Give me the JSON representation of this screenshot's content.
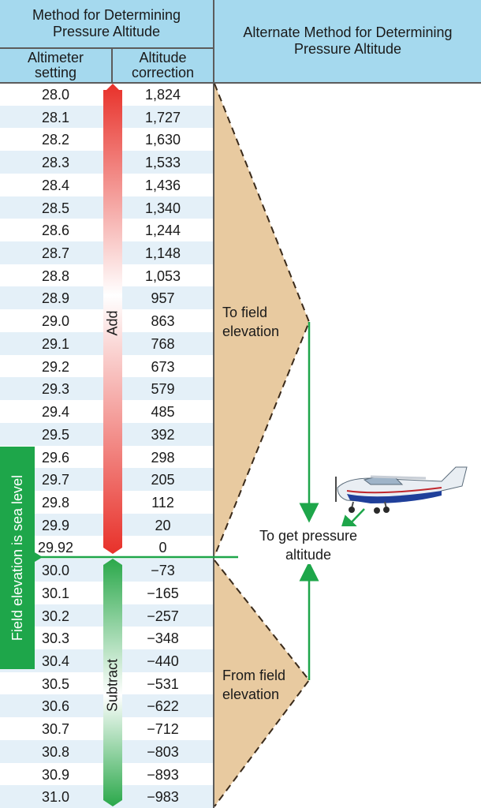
{
  "headers": {
    "left_title": "Method for Determining Pressure Altitude",
    "right_title": "Alternate Method for Determining Pressure Altitude",
    "col_altimeter": "Altimeter setting",
    "col_correction": "Altitude correction"
  },
  "rows": [
    {
      "setting": "28.0",
      "correction": "1,824"
    },
    {
      "setting": "28.1",
      "correction": "1,727"
    },
    {
      "setting": "28.2",
      "correction": "1,630"
    },
    {
      "setting": "28.3",
      "correction": "1,533"
    },
    {
      "setting": "28.4",
      "correction": "1,436"
    },
    {
      "setting": "28.5",
      "correction": "1,340"
    },
    {
      "setting": "28.6",
      "correction": "1,244"
    },
    {
      "setting": "28.7",
      "correction": "1,148"
    },
    {
      "setting": "28.8",
      "correction": "1,053"
    },
    {
      "setting": "28.9",
      "correction": "957"
    },
    {
      "setting": "29.0",
      "correction": "863"
    },
    {
      "setting": "29.1",
      "correction": "768"
    },
    {
      "setting": "29.2",
      "correction": "673"
    },
    {
      "setting": "29.3",
      "correction": "579"
    },
    {
      "setting": "29.4",
      "correction": "485"
    },
    {
      "setting": "29.5",
      "correction": "392"
    },
    {
      "setting": "29.6",
      "correction": "298"
    },
    {
      "setting": "29.7",
      "correction": "205"
    },
    {
      "setting": "29.8",
      "correction": "112"
    },
    {
      "setting": "29.9",
      "correction": "20"
    },
    {
      "setting": "29.92",
      "correction": "0"
    },
    {
      "setting": "30.0",
      "correction": "−73"
    },
    {
      "setting": "30.1",
      "correction": "−165"
    },
    {
      "setting": "30.2",
      "correction": "−257"
    },
    {
      "setting": "30.3",
      "correction": "−348"
    },
    {
      "setting": "30.4",
      "correction": "−440"
    },
    {
      "setting": "30.5",
      "correction": "−531"
    },
    {
      "setting": "30.6",
      "correction": "−622"
    },
    {
      "setting": "30.7",
      "correction": "−712"
    },
    {
      "setting": "30.8",
      "correction": "−803"
    },
    {
      "setting": "30.9",
      "correction": "−893"
    },
    {
      "setting": "31.0",
      "correction": "−983"
    }
  ],
  "bars": {
    "add_label": "Add",
    "subtract_label": "Subtract"
  },
  "sea_level_label": "Field elevation is sea level",
  "annotations": {
    "to_field": "To field elevation",
    "to_get": "To get pressure altitude",
    "from_field": "From field elevation"
  },
  "colors": {
    "header_bg": "#a5d9ee",
    "row_stripe": "#e4f0f8",
    "add_red": "#e8312a",
    "subtract_green": "#2aa84a",
    "arrow_green": "#1ea64a",
    "triangle_tan": "#e8caa0"
  }
}
